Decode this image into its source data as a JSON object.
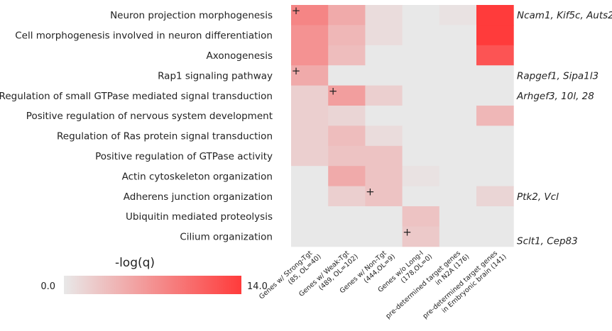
{
  "chart_data": {
    "type": "heatmap",
    "rows": [
      "Neuron projection morphogenesis",
      "Cell morphogenesis involved in neuron differentiation",
      "Axonogenesis",
      "Rap1 signaling pathway",
      "Regulation of small GTPase mediated signal transduction",
      "Positive regulation of nervous system development",
      "Regulation of Ras protein signal transduction",
      "Positive regulation of GTPase activity",
      "Actin cytoskeleton organization",
      "Adherens junction organization",
      "Ubiquitin mediated proteolysis",
      "Cilium organization"
    ],
    "columns": [
      [
        "Genes w/ Strong-Tgt",
        "(85, OL=40)"
      ],
      [
        "Genes w/ Weak-Tgt",
        "(489, OL=102)"
      ],
      [
        "Genes w/ Non-Tgt",
        "(444,OL=9)"
      ],
      [
        "Genes w/o Long-I",
        "(178,OL=0)"
      ],
      [
        "pre-determined target genes",
        "in N2A (176)"
      ],
      [
        "pre-determined target genes",
        "in Embryonic brain (141)"
      ]
    ],
    "values": [
      [
        8,
        5,
        1,
        0,
        0.5,
        14
      ],
      [
        7,
        4,
        1,
        0,
        0,
        14
      ],
      [
        7,
        3.5,
        0,
        0,
        0,
        12
      ],
      [
        5,
        0,
        0,
        0,
        0,
        0
      ],
      [
        2,
        6,
        2,
        0,
        0,
        0
      ],
      [
        2,
        1.5,
        0,
        0,
        0,
        4
      ],
      [
        2,
        3.5,
        1,
        0,
        0,
        0
      ],
      [
        2,
        3,
        3,
        0,
        0,
        0
      ],
      [
        0,
        5,
        3,
        0.5,
        0,
        0
      ],
      [
        0,
        2,
        3,
        0,
        0,
        1.5
      ],
      [
        0,
        0,
        0,
        3,
        0,
        0
      ],
      [
        0,
        0,
        0,
        2.5,
        0,
        0
      ]
    ],
    "marker_symbol": "+",
    "marked_column": [
      0,
      null,
      null,
      0,
      1,
      null,
      null,
      null,
      null,
      2,
      null,
      3
    ],
    "row_notes": [
      "Ncam1, Kif5c, Auts2",
      null,
      null,
      "Rapgef1, Sipa1l3",
      "Arhgef3, 10l, 28",
      null,
      null,
      null,
      null,
      "Ptk2, Vcl",
      null,
      "Sclt1, Cep83"
    ],
    "colorbar_title": "-log(q)",
    "clim": [
      0,
      14
    ],
    "cticks": [
      {
        "value": 0,
        "label": "0.0"
      },
      {
        "value": 14,
        "label": "14.0"
      }
    ],
    "color_low": "#e8e8e8",
    "color_high": "#ff3b3b"
  }
}
